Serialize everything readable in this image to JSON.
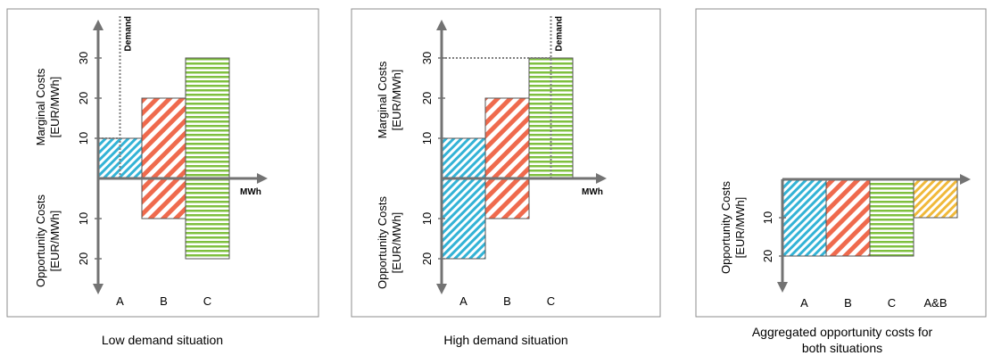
{
  "colors": {
    "A": "#33b3d6",
    "B": "#ef6a4d",
    "C": "#7fc03f",
    "A&B": "#f0b93a",
    "axis": "#737373"
  },
  "chart_data": [
    {
      "type": "bar",
      "caption": "Low demand situation",
      "categories": [
        "A",
        "B",
        "C"
      ],
      "series": [
        {
          "name": "Marginal Costs",
          "values": [
            10,
            20,
            30
          ]
        },
        {
          "name": "Opportunity Costs",
          "values": [
            0,
            10,
            20
          ]
        }
      ],
      "ylabel_top": [
        "Marginal Costs",
        "[EUR/MWh]"
      ],
      "ylabel_bottom": [
        "Opportunity Costs",
        "[EUR/MWh]"
      ],
      "xlabel": "MWh",
      "ticks_top": [
        10,
        20,
        30
      ],
      "ticks_bottom": [
        10,
        20
      ],
      "demand_label": "Demand",
      "demand_category_fraction": 0.5,
      "demand_cost_level": 10
    },
    {
      "type": "bar",
      "caption": "High demand situation",
      "categories": [
        "A",
        "B",
        "C"
      ],
      "series": [
        {
          "name": "Marginal Costs",
          "values": [
            10,
            20,
            30
          ]
        },
        {
          "name": "Opportunity Costs",
          "values": [
            20,
            10,
            0
          ]
        }
      ],
      "ylabel_top": [
        "Marginal Costs",
        "[EUR/MWh]"
      ],
      "ylabel_bottom": [
        "Opportunity Costs",
        "[EUR/MWh]"
      ],
      "xlabel": "MWh",
      "ticks_top": [
        10,
        20,
        30
      ],
      "ticks_bottom": [
        10,
        20
      ],
      "demand_label": "Demand",
      "demand_category_fraction": 2.5,
      "demand_cost_level": 30
    },
    {
      "type": "bar",
      "caption": [
        "Aggregated opportunity costs for",
        "both situations"
      ],
      "categories": [
        "A",
        "B",
        "C",
        "A&B"
      ],
      "series": [
        {
          "name": "Opportunity Costs",
          "values": [
            20,
            20,
            20,
            10
          ]
        }
      ],
      "ylabel_bottom": [
        "Opportunity Costs",
        "[EUR/MWh]"
      ],
      "ticks_bottom": [
        10,
        20
      ]
    }
  ]
}
